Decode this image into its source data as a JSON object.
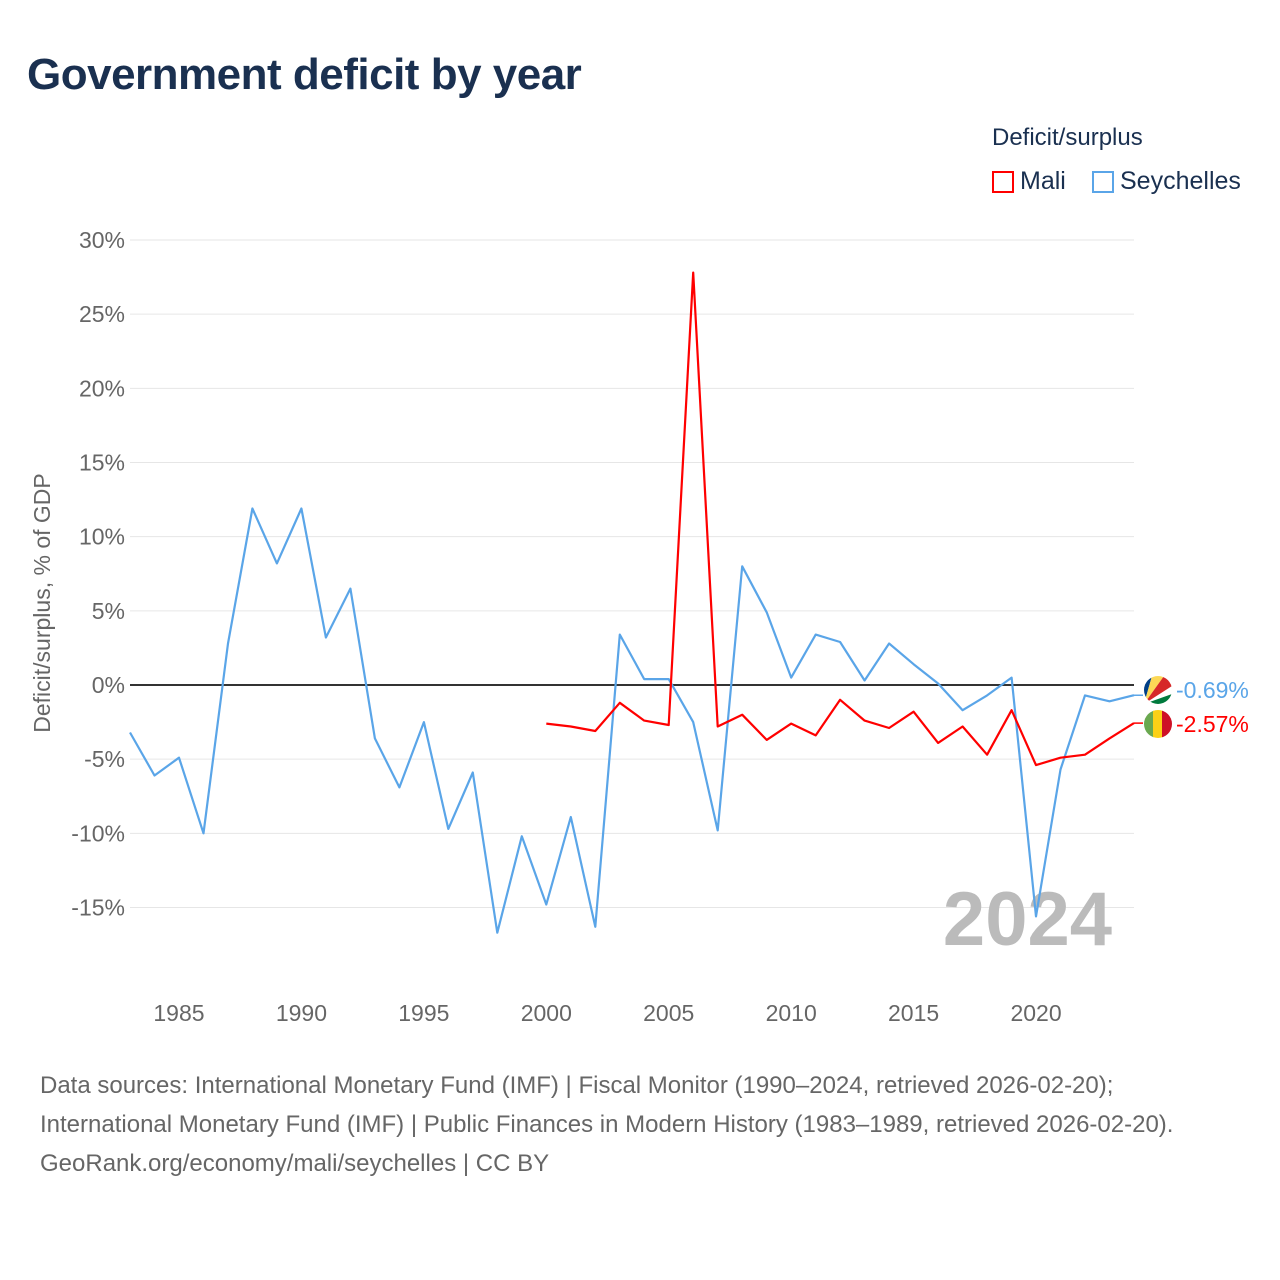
{
  "title": "Government deficit by year",
  "legend": {
    "title": "Deficit/surplus",
    "items": [
      {
        "name": "Mali",
        "color": "#ff0000"
      },
      {
        "name": "Seychelles",
        "color": "#5aa5e8"
      }
    ]
  },
  "year_watermark": "2024",
  "end_labels": {
    "seychelles": "-0.69%",
    "mali": "-2.57%"
  },
  "sources": {
    "line1": "Data sources: International Monetary Fund (IMF) | Fiscal Monitor (1990–2024, retrieved 2026-02-20); International Monetary Fund (IMF) | Public Finances in Modern History (1983–1989, retrieved 2026-02-20).",
    "line2": "GeoRank.org/economy/mali/seychelles | CC BY"
  },
  "chart_data": {
    "type": "line",
    "title": "Government deficit by year",
    "xlabel": "",
    "ylabel": "Deficit/surplus, % of GDP",
    "xlim": [
      1983,
      2024
    ],
    "ylim": [
      -20,
      30
    ],
    "xticks": [
      1985,
      1990,
      1995,
      2000,
      2005,
      2010,
      2015,
      2020
    ],
    "yticks": [
      30,
      25,
      20,
      15,
      10,
      5,
      0,
      -5,
      -10,
      -15
    ],
    "ytick_labels": [
      "30%",
      "25%",
      "20%",
      "15%",
      "10%",
      "5%",
      "0%",
      "-5%",
      "-10%",
      "-15%"
    ],
    "grid": true,
    "legend_position": "top-right",
    "series": [
      {
        "name": "Seychelles",
        "color": "#5aa5e8",
        "start_year": 1983,
        "values": [
          -3.2,
          -6.1,
          -4.9,
          -10.0,
          2.8,
          11.9,
          8.2,
          11.9,
          3.2,
          6.5,
          -3.6,
          -6.9,
          -2.5,
          -9.7,
          -5.9,
          -16.7,
          -10.2,
          -14.8,
          -8.9,
          -16.3,
          3.4,
          0.4,
          0.4,
          -2.5,
          -9.8,
          8.0,
          4.9,
          0.5,
          3.4,
          2.9,
          0.3,
          2.8,
          1.4,
          0.1,
          -1.7,
          -0.7,
          0.5,
          -15.6,
          -5.7,
          -0.7,
          -1.1,
          -0.69
        ]
      },
      {
        "name": "Mali",
        "color": "#ff0000",
        "start_year": 2000,
        "values": [
          -2.6,
          -2.8,
          -3.1,
          -1.2,
          -2.4,
          -2.7,
          27.8,
          -2.8,
          -2.0,
          -3.7,
          -2.6,
          -3.4,
          -1.0,
          -2.4,
          -2.9,
          -1.8,
          -3.9,
          -2.8,
          -4.7,
          -1.7,
          -5.4,
          -4.9,
          -4.7,
          -3.6,
          -2.57
        ]
      }
    ]
  }
}
